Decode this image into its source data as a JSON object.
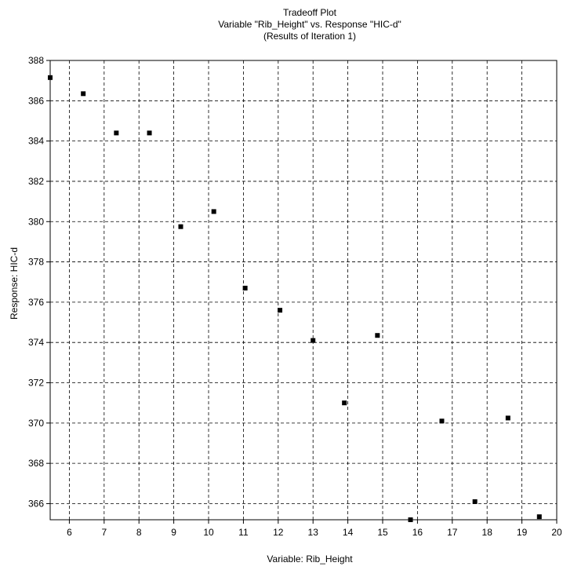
{
  "chart_data": {
    "type": "scatter",
    "title": [
      "Tradeoff Plot",
      "Variable \"Rib_Height\" vs. Response \"HIC-d\"",
      "(Results of Iteration 1)"
    ],
    "xlabel": "Variable: Rib_Height",
    "ylabel": "Response: HIC-d",
    "xlim": [
      5.45,
      20
    ],
    "ylim": [
      365.2,
      388
    ],
    "x_ticks": [
      6,
      7,
      8,
      9,
      10,
      11,
      12,
      13,
      14,
      15,
      16,
      17,
      18,
      19,
      20
    ],
    "y_ticks": [
      366,
      368,
      370,
      372,
      374,
      376,
      378,
      380,
      382,
      384,
      386,
      388
    ],
    "grid": true,
    "points": [
      {
        "x": 5.45,
        "y": 387.15
      },
      {
        "x": 6.4,
        "y": 386.35
      },
      {
        "x": 7.35,
        "y": 384.4
      },
      {
        "x": 8.3,
        "y": 384.4
      },
      {
        "x": 9.2,
        "y": 379.75
      },
      {
        "x": 10.15,
        "y": 380.5
      },
      {
        "x": 11.05,
        "y": 376.7
      },
      {
        "x": 12.05,
        "y": 375.6
      },
      {
        "x": 13.0,
        "y": 374.1
      },
      {
        "x": 13.9,
        "y": 371.0
      },
      {
        "x": 14.85,
        "y": 374.35
      },
      {
        "x": 15.8,
        "y": 365.2
      },
      {
        "x": 16.7,
        "y": 370.1
      },
      {
        "x": 17.65,
        "y": 366.1
      },
      {
        "x": 18.6,
        "y": 370.25
      },
      {
        "x": 19.5,
        "y": 365.35
      }
    ]
  }
}
